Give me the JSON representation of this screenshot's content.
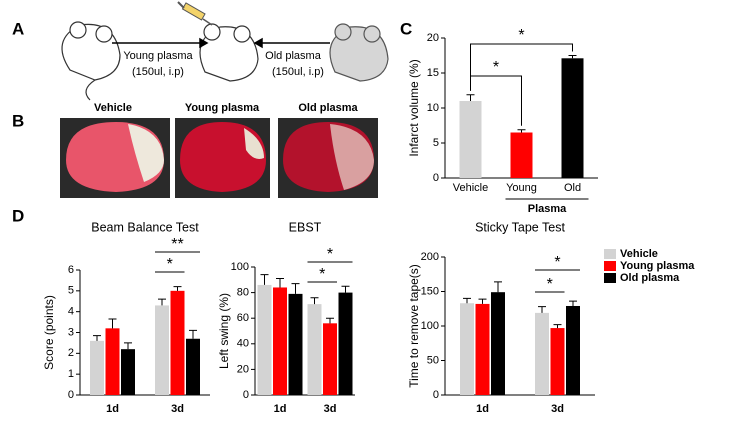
{
  "panel_labels": [
    "A",
    "B",
    "C",
    "D"
  ],
  "diagram": {
    "left_arrow_label": "Young plasma",
    "left_arrow_dose": "(150ul, i.p)",
    "right_arrow_label": "Old plasma",
    "right_arrow_dose": "(150ul, i.p)"
  },
  "images": [
    {
      "label": "Vehicle"
    },
    {
      "label": "Young plasma"
    },
    {
      "label": "Old plasma"
    }
  ],
  "chart_data": [
    {
      "type": "bar",
      "ylabel": "Infarct volume (%)",
      "categories": [
        "Vehicle",
        "Young",
        "Old"
      ],
      "group_label": "Plasma",
      "values": [
        11,
        6.5,
        17.1
      ],
      "errors": [
        0.9,
        0.4,
        0.4
      ],
      "colors": [
        "#d3d3d3",
        "#ff0000",
        "#000000"
      ],
      "ylim": [
        0,
        20
      ],
      "yticks": [
        0,
        5,
        10,
        15,
        20
      ],
      "annotations": [
        "*",
        "*"
      ]
    },
    {
      "type": "grouped_bar",
      "title": "Beam Balance Test",
      "ylabel": "Score (points)",
      "categories": [
        "1d",
        "3d"
      ],
      "series": [
        {
          "name": "Vehicle",
          "color": "#d3d3d3",
          "values": [
            2.6,
            4.3
          ],
          "errors": [
            0.25,
            0.3
          ]
        },
        {
          "name": "Young plasma",
          "color": "#ff0000",
          "values": [
            3.2,
            5.0
          ],
          "errors": [
            0.45,
            0.2
          ]
        },
        {
          "name": "Old plasma",
          "color": "#000000",
          "values": [
            2.2,
            2.7
          ],
          "errors": [
            0.3,
            0.4
          ]
        }
      ],
      "ylim": [
        0,
        6
      ],
      "yticks": [
        0,
        1,
        2,
        3,
        4,
        5,
        6
      ],
      "annotations": [
        "*",
        "**"
      ],
      "legend": "right"
    },
    {
      "type": "grouped_bar",
      "title": "EBST",
      "ylabel": "Left swing (%)",
      "categories": [
        "1d",
        "3d"
      ],
      "series": [
        {
          "name": "Vehicle",
          "color": "#d3d3d3",
          "values": [
            86,
            71
          ],
          "errors": [
            8,
            5
          ]
        },
        {
          "name": "Young plasma",
          "color": "#ff0000",
          "values": [
            84,
            56
          ],
          "errors": [
            7,
            4
          ]
        },
        {
          "name": "Old plasma",
          "color": "#000000",
          "values": [
            79,
            80
          ],
          "errors": [
            8,
            5
          ]
        }
      ],
      "ylim": [
        0,
        100
      ],
      "yticks": [
        0,
        20,
        40,
        60,
        80,
        100
      ],
      "annotations": [
        "*",
        "*"
      ]
    },
    {
      "type": "grouped_bar",
      "title": "Sticky Tape Test",
      "ylabel": "Time to remove tape(s)",
      "categories": [
        "1d",
        "3d"
      ],
      "series": [
        {
          "name": "Vehicle",
          "color": "#d3d3d3",
          "values": [
            133,
            119
          ],
          "errors": [
            7,
            9
          ]
        },
        {
          "name": "Young plasma",
          "color": "#ff0000",
          "values": [
            132,
            97
          ],
          "errors": [
            7,
            5
          ]
        },
        {
          "name": "Old plasma",
          "color": "#000000",
          "values": [
            149,
            129
          ],
          "errors": [
            15,
            7
          ]
        }
      ],
      "ylim": [
        0,
        200
      ],
      "yticks": [
        0,
        50,
        100,
        150,
        200
      ],
      "annotations": [
        "*",
        "*"
      ]
    }
  ]
}
